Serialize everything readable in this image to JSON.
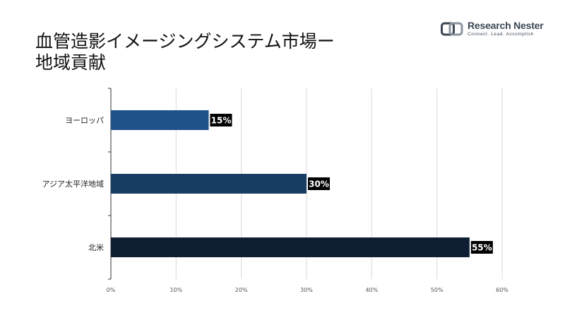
{
  "title_lines": [
    "血管造影イメージングシステム市場ー",
    "地域貢献"
  ],
  "logo": {
    "name": "Research Nester",
    "tagline": "Connect. Lead. Accomplish"
  },
  "chart_data": {
    "type": "bar",
    "orientation": "horizontal",
    "categories": [
      "ヨーロッパ",
      "アジア太平洋地域",
      "北米"
    ],
    "values": [
      15,
      30,
      55
    ],
    "value_labels": [
      "15%",
      "30%",
      "55%"
    ],
    "bar_colors": [
      "#1f5288",
      "#183d63",
      "#0e1e33"
    ],
    "xlim": [
      0,
      60
    ],
    "xticks": [
      0,
      10,
      20,
      30,
      40,
      50,
      60
    ],
    "xtick_labels": [
      "0%",
      "10%",
      "20%",
      "30%",
      "40%",
      "50%",
      "60%"
    ],
    "grid": true,
    "legend": "none"
  }
}
